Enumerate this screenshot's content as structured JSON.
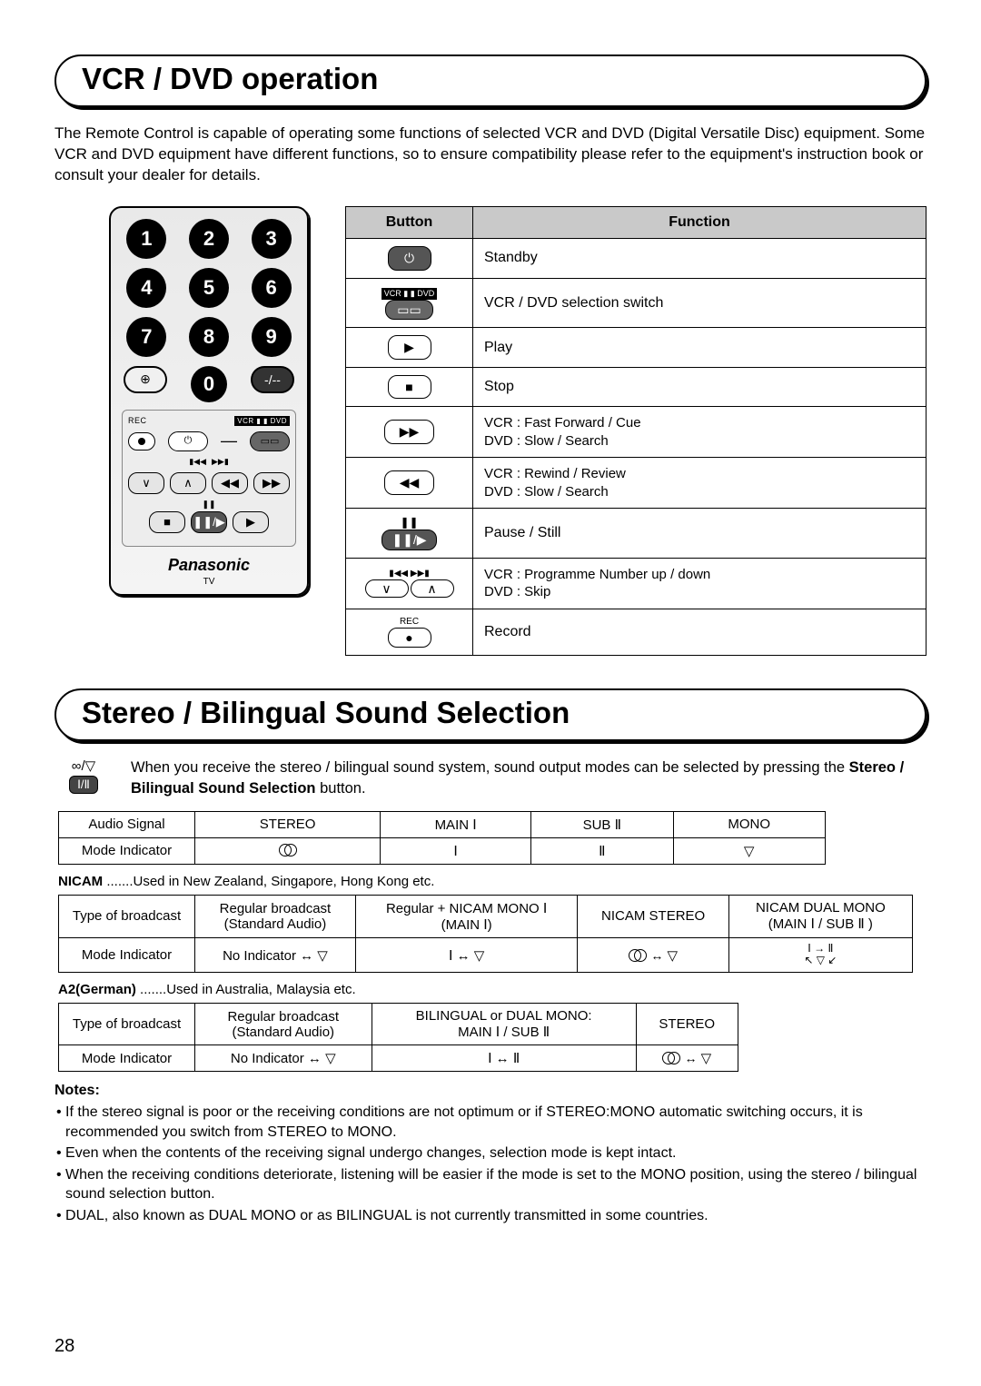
{
  "page_number": "28",
  "section1": {
    "title": "VCR / DVD operation",
    "intro": "The Remote Control is capable of operating some functions of selected VCR and DVD (Digital Versatile Disc) equipment. Some VCR and DVD equipment have different functions, so to ensure compatibility please refer to the equipment's instruction book or consult your dealer for details."
  },
  "remote": {
    "numbers": [
      "1",
      "2",
      "3",
      "4",
      "5",
      "6",
      "7",
      "8",
      "9"
    ],
    "zero": "0",
    "plus": "⊕",
    "dash": "-/--",
    "rec_label": "REC",
    "vcr_dvd_label": "VCR ▮ ▮ DVD",
    "brand": "Panasonic",
    "tv": "TV"
  },
  "func_table": {
    "headers": {
      "button": "Button",
      "function": "Function"
    },
    "rows": [
      {
        "icon": "⏻",
        "icon_dark": true,
        "text": "Standby"
      },
      {
        "icon_text": "VCR ▮ ▮ DVD",
        "icon_sub": "▭▭",
        "text": "VCR / DVD selection switch"
      },
      {
        "icon": "▶",
        "text": "Play"
      },
      {
        "icon": "■",
        "text": "Stop"
      },
      {
        "icon": "▶▶",
        "text": "VCR : Fast Forward / Cue\nDVD : Slow / Search"
      },
      {
        "icon": "◀◀",
        "text": "VCR : Rewind / Review\nDVD : Slow / Search"
      },
      {
        "icon_text": "❚❚",
        "icon_sub": "❚❚/▶",
        "text": "Pause / Still"
      },
      {
        "icon_text": "▮◀◀  ▶▶▮",
        "icon_sub": "∨  ∧",
        "text": "VCR : Programme Number up / down\nDVD : Skip"
      },
      {
        "icon_text": "REC",
        "icon_sub": "●",
        "text": "Record"
      }
    ]
  },
  "section2": {
    "title": "Stereo / Bilingual Sound Selection",
    "icon1": "∞/▽",
    "icon2": "Ⅰ/Ⅱ",
    "intro_a": "When you receive the stereo / bilingual sound system, sound output modes can be selected by pressing the ",
    "intro_bold": "Stereo / Bilingual Sound Selection",
    "intro_b": " button."
  },
  "table_audio": {
    "row1": [
      "Audio Signal",
      "STEREO",
      "MAIN Ⅰ",
      "SUB Ⅱ",
      "MONO"
    ],
    "row2_label": "Mode Indicator",
    "row2_cells": [
      "interlock",
      "Ⅰ",
      "Ⅱ",
      "▽"
    ]
  },
  "nicam_note_a": "NICAM",
  "nicam_note_b": " .......Used in New Zealand, Singapore, Hong Kong etc.",
  "table_nicam": {
    "r1": [
      "Type of broadcast",
      "Regular broadcast\n(Standard Audio)",
      "Regular + NICAM MONO Ⅰ\n(MAIN Ⅰ)",
      "NICAM STEREO",
      "NICAM DUAL MONO\n(MAIN Ⅰ / SUB Ⅱ )"
    ],
    "r2_label": "Mode Indicator",
    "r2": [
      "No Indicator ↔ ▽",
      "Ⅰ  ↔  ▽",
      "∞  ↔  ▽",
      "cycle"
    ]
  },
  "a2_note_a": "A2(German)",
  "a2_note_b": " .......Used in Australia, Malaysia etc.",
  "table_a2": {
    "r1": [
      "Type of broadcast",
      "Regular broadcast\n(Standard Audio)",
      "BILINGUAL or DUAL MONO:\nMAIN Ⅰ / SUB Ⅱ",
      "STEREO"
    ],
    "r2_label": "Mode Indicator",
    "r2": [
      "No Indicator ↔ ▽",
      "Ⅰ  ↔  Ⅱ",
      "∞  ↔  ▽"
    ]
  },
  "notes": {
    "title": "Notes:",
    "items": [
      "If the stereo signal is poor or the receiving conditions are not optimum or if STEREO:MONO automatic switching occurs, it is recommended you switch from STEREO to MONO.",
      "Even when the contents of the receiving signal undergo changes, selection mode is kept intact.",
      "When the receiving conditions deteriorate, listening will be easier if the mode is set to the MONO position, using the stereo / bilingual sound selection button.",
      "DUAL, also known as DUAL MONO or as BILINGUAL is not currently transmitted in some countries."
    ]
  },
  "cycle_text": "Ⅰ → Ⅱ\n↖ ▽ ↙"
}
